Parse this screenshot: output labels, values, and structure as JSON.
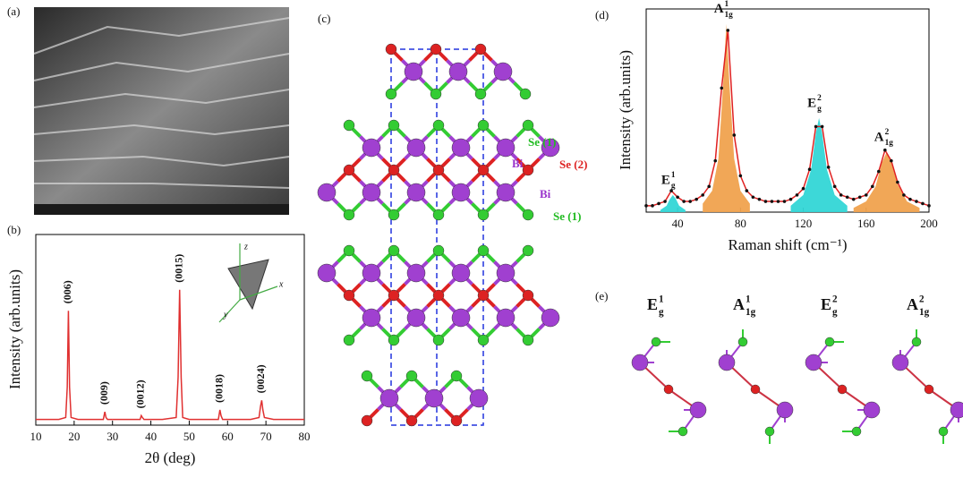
{
  "panels": {
    "a": "(a)",
    "b": "(b)",
    "c": "(c)",
    "d": "(d)",
    "e": "(e)"
  },
  "inset_axes": [
    "z",
    "x",
    "y"
  ],
  "structure_labels": [
    "Se (1)",
    "Bi",
    "Se (2)",
    "Bi",
    "Se (1)"
  ],
  "modes": [
    {
      "symbol": "E",
      "sub": "g",
      "sup": "1"
    },
    {
      "symbol": "A",
      "sub": "1g",
      "sup": "1"
    },
    {
      "symbol": "E",
      "sub": "g",
      "sup": "2"
    },
    {
      "symbol": "A",
      "sub": "1g",
      "sup": "2"
    }
  ],
  "chart_data": [
    {
      "type": "line",
      "xlabel": "2θ (deg)",
      "ylabel": "Intensity (arb.units)",
      "xlim": [
        10,
        80
      ],
      "xticks": [
        10,
        20,
        30,
        40,
        50,
        60,
        70,
        80
      ],
      "ylim": [
        0,
        100
      ],
      "peak_labels": [
        "(006)",
        "(009)",
        "(0012)",
        "(0015)",
        "(0018)",
        "(0024)"
      ],
      "series": [
        {
          "color": "#e03030",
          "x": [
            10,
            12,
            14,
            16,
            17.8,
            18.2,
            18.5,
            18.8,
            19.2,
            21,
            24,
            27.6,
            28,
            28.3,
            28.7,
            30,
            33,
            37.2,
            37.5,
            37.8,
            38.2,
            40,
            43,
            46.6,
            47.1,
            47.5,
            47.9,
            48.3,
            50,
            53,
            56,
            57.6,
            58,
            58.3,
            58.7,
            60,
            63,
            66,
            68.2,
            68.6,
            68.9,
            69.2,
            69.6,
            72,
            75,
            78,
            80
          ],
          "values": [
            3,
            3,
            3,
            3,
            4,
            20,
            60,
            20,
            4,
            3,
            3,
            3,
            7,
            4,
            3,
            3,
            3,
            3,
            5,
            4,
            3,
            3,
            3,
            4,
            25,
            71,
            25,
            4,
            3,
            3,
            3,
            3,
            8,
            5,
            3,
            3,
            3,
            3,
            4,
            10,
            13,
            8,
            4,
            3,
            3,
            3,
            3
          ]
        }
      ]
    },
    {
      "type": "line",
      "xlabel": "Raman shift (cm⁻¹)",
      "ylabel": "Intensity (arb.units)",
      "xlim": [
        20,
        200
      ],
      "xticks": [
        40,
        80,
        120,
        160,
        200
      ],
      "ylim": [
        0,
        95
      ],
      "components": [
        {
          "label": {
            "symbol": "E",
            "sub": "g",
            "sup": "1"
          },
          "color": "#33d6d6",
          "x": [
            29,
            33,
            35,
            37,
            39,
            41,
            45
          ],
          "values": [
            1,
            3,
            6,
            8,
            6,
            3,
            1
          ]
        },
        {
          "label": {
            "symbol": "A",
            "sub": "1g",
            "sup": "1"
          },
          "color": "#f0a24e",
          "x": [
            56,
            62,
            66,
            69,
            71,
            73,
            76,
            80,
            86
          ],
          "values": [
            4,
            10,
            25,
            60,
            88,
            60,
            25,
            10,
            4
          ]
        },
        {
          "label": {
            "symbol": "E",
            "sub": "g",
            "sup": "2"
          },
          "color": "#33d6d6",
          "x": [
            112,
            120,
            125,
            128,
            130,
            132,
            135,
            140,
            148
          ],
          "values": [
            3,
            8,
            20,
            37,
            44,
            37,
            20,
            8,
            3
          ]
        },
        {
          "label": {
            "symbol": "A",
            "sub": "1g",
            "sup": "2"
          },
          "color": "#f0a24e",
          "x": [
            152,
            160,
            166,
            170,
            173,
            176,
            180,
            186,
            194
          ],
          "values": [
            2,
            5,
            12,
            23,
            28,
            23,
            13,
            5,
            2
          ]
        }
      ],
      "series": [
        {
          "color": "#e02020",
          "marker_color": "#111111",
          "x": [
            20,
            24,
            28,
            32,
            36,
            40,
            44,
            48,
            52,
            56,
            60,
            64,
            68,
            72,
            76,
            80,
            84,
            88,
            92,
            96,
            100,
            104,
            108,
            112,
            116,
            120,
            124,
            128,
            132,
            136,
            140,
            144,
            148,
            152,
            156,
            160,
            164,
            168,
            172,
            176,
            180,
            184,
            188,
            192,
            196,
            200
          ],
          "values": [
            3,
            3,
            4,
            5,
            10,
            7,
            5,
            5,
            6,
            8,
            12,
            24,
            58,
            85,
            36,
            17,
            10,
            7,
            6,
            5,
            5,
            5,
            5,
            6,
            8,
            11,
            20,
            40,
            40,
            21,
            12,
            8,
            7,
            6,
            7,
            8,
            12,
            19,
            29,
            24,
            14,
            8,
            6,
            5,
            4,
            3
          ]
        }
      ]
    }
  ]
}
